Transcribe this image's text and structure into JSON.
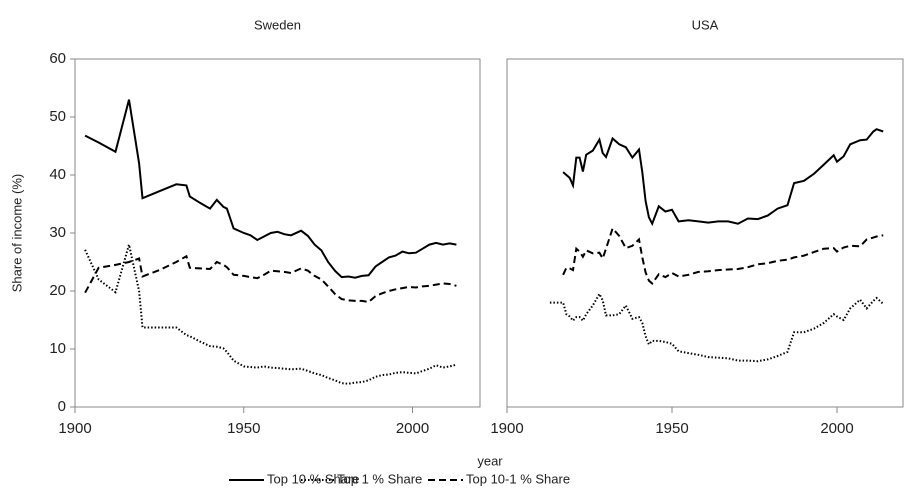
{
  "chart_data": [
    {
      "type": "line",
      "title": "Sweden",
      "ylabel": "Share of income (%)",
      "xlabel": "year",
      "xlim": [
        1900,
        2020
      ],
      "xticks": [
        1900,
        1950,
        2000
      ],
      "ylim": [
        0,
        60
      ],
      "yticks": [
        0,
        10,
        20,
        30,
        40,
        50,
        60
      ],
      "x": [
        1903,
        1907,
        1912,
        1916,
        1919,
        1920,
        1925,
        1930,
        1933,
        1934,
        1937,
        1940,
        1942,
        1944,
        1945,
        1947,
        1950,
        1952,
        1954,
        1956,
        1958,
        1960,
        1962,
        1964,
        1967,
        1969,
        1971,
        1973,
        1975,
        1977,
        1979,
        1981,
        1983,
        1985,
        1987,
        1989,
        1991,
        1993,
        1995,
        1997,
        1999,
        2001,
        2003,
        2005,
        2007,
        2009,
        2011,
        2013
      ],
      "series": [
        {
          "name": "Top 10 % Share",
          "color": "#000000",
          "style": "solid",
          "values": [
            46.8,
            45.6,
            44,
            53,
            42,
            36,
            37.2,
            38.4,
            38.2,
            36.3,
            35.2,
            34.2,
            35.7,
            34.5,
            34.2,
            30.8,
            30,
            29.6,
            28.8,
            29.4,
            30,
            30.2,
            29.8,
            29.6,
            30.4,
            29.5,
            28,
            27,
            25,
            23.5,
            22.4,
            22.5,
            22.3,
            22.6,
            22.7,
            24.2,
            25,
            25.8,
            26.1,
            26.8,
            26.5,
            26.6,
            27.3,
            28,
            28.3,
            28,
            28.2,
            28
          ]
        },
        {
          "name": "Top 1 % Share",
          "color": "#000000",
          "style": "dotted",
          "values": [
            27.1,
            22,
            19.8,
            28,
            20,
            13.7,
            13.7,
            13.7,
            12.4,
            12.2,
            11.3,
            10.5,
            10.4,
            10.1,
            9.5,
            8,
            7,
            6.9,
            6.8,
            7,
            6.8,
            6.7,
            6.6,
            6.5,
            6.6,
            6.2,
            5.8,
            5.5,
            5,
            4.6,
            4.1,
            4,
            4.2,
            4.3,
            4.6,
            5.2,
            5.5,
            5.6,
            5.9,
            6,
            5.9,
            5.8,
            6.2,
            6.6,
            7.2,
            6.8,
            7,
            7.3
          ]
        },
        {
          "name": "Top 10-1 % Share",
          "color": "#000000",
          "style": "dashed",
          "values": [
            19.7,
            24,
            24.5,
            25,
            25.6,
            22.5,
            23.6,
            25,
            26,
            24,
            23.9,
            23.8,
            25,
            24.5,
            24.1,
            22.8,
            22.6,
            22.4,
            22.2,
            22.8,
            23.5,
            23.4,
            23.3,
            23.1,
            23.9,
            23.5,
            22.6,
            22,
            20.8,
            19.5,
            18.6,
            18.4,
            18.3,
            18.3,
            18.1,
            19.1,
            19.6,
            20,
            20.3,
            20.5,
            20.7,
            20.6,
            20.8,
            20.9,
            21.1,
            21.3,
            21.2,
            20.9
          ]
        }
      ]
    },
    {
      "type": "line",
      "title": "USA",
      "xlim": [
        1900,
        2020
      ],
      "xticks": [
        1900,
        1950,
        2000
      ],
      "ylim": [
        0,
        60
      ],
      "x": [
        1913,
        1916,
        1917,
        1918,
        1919,
        1920,
        1921,
        1922,
        1923,
        1924,
        1926,
        1928,
        1929,
        1930,
        1932,
        1934,
        1936,
        1938,
        1940,
        1941,
        1942,
        1943,
        1944,
        1946,
        1948,
        1950,
        1952,
        1955,
        1958,
        1961,
        1964,
        1967,
        1970,
        1973,
        1976,
        1979,
        1982,
        1985,
        1987,
        1990,
        1993,
        1996,
        1999,
        2000,
        2002,
        2004,
        2007,
        2009,
        2011,
        2012,
        2014
      ],
      "series": [
        {
          "name": "Top 10 % Share",
          "color": "#000000",
          "style": "solid",
          "values": [
            null,
            null,
            40.5,
            40,
            39.5,
            38.2,
            43,
            43,
            40.6,
            43.5,
            44.2,
            46.1,
            43.8,
            43.1,
            46.3,
            45.3,
            44.8,
            43,
            44.4,
            40.5,
            35.5,
            32.7,
            31.6,
            34.6,
            33.7,
            34,
            32,
            32.2,
            32,
            31.8,
            32,
            32,
            31.6,
            32.5,
            32.4,
            33,
            34.2,
            34.8,
            38.6,
            39,
            40.2,
            41.8,
            43.4,
            42.3,
            43.2,
            45.3,
            46,
            46.1,
            47.5,
            47.9,
            47.5
          ]
        },
        {
          "name": "Top 1 % Share",
          "color": "#000000",
          "style": "dotted",
          "values": [
            18,
            18,
            18,
            16,
            15.6,
            14.9,
            15.5,
            15.5,
            14.9,
            16,
            17.5,
            19.5,
            18.4,
            15.8,
            15.8,
            16,
            17.5,
            15.2,
            15.5,
            14.5,
            12.2,
            10.8,
            11.4,
            11.4,
            11.2,
            10.9,
            9.6,
            9.3,
            9,
            8.6,
            8.5,
            8.4,
            8,
            8,
            7.9,
            8.2,
            8.8,
            9.5,
            12.9,
            12.9,
            13.5,
            14.5,
            16,
            15.6,
            15,
            17,
            18.5,
            17,
            18.3,
            18.8,
            17.8
          ]
        },
        {
          "name": "Top 10-1 % Share",
          "color": "#000000",
          "style": "dashed",
          "values": [
            null,
            null,
            22.8,
            24,
            23.9,
            23.6,
            27.3,
            26.8,
            25.9,
            27,
            26.5,
            26.6,
            25.6,
            27.3,
            30.8,
            29.5,
            27.4,
            27.8,
            28.9,
            25.8,
            23.2,
            21.8,
            21.3,
            22.9,
            22.4,
            23.1,
            22.5,
            22.8,
            23.3,
            23.4,
            23.6,
            23.7,
            23.8,
            24.1,
            24.6,
            24.8,
            25.2,
            25.4,
            25.8,
            26.1,
            26.7,
            27.3,
            27.4,
            26.8,
            27.5,
            27.8,
            27.7,
            28.9,
            29.2,
            29.4,
            29.6
          ]
        }
      ]
    }
  ]
}
